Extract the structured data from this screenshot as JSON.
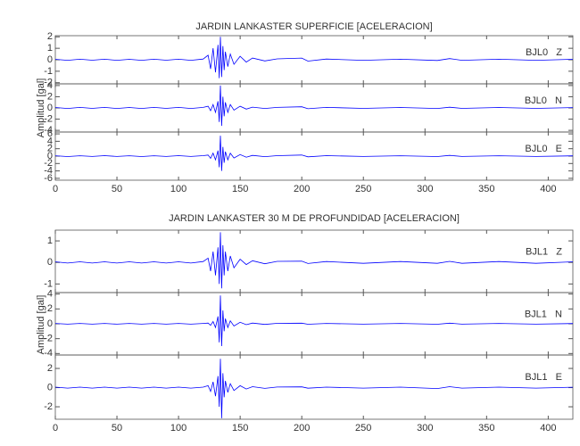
{
  "chart_data": [
    {
      "type": "line",
      "title": "JARDIN LANKASTER SUPERFICIE [ACELERACION]",
      "ylabel": "Amplitud [gal]",
      "color": "#0000ff",
      "xlim": [
        0,
        420
      ],
      "xticks": [
        0,
        50,
        100,
        150,
        200,
        250,
        300,
        350,
        400
      ],
      "x": [
        0,
        10,
        20,
        30,
        40,
        50,
        60,
        70,
        80,
        90,
        100,
        110,
        120,
        124,
        126,
        128,
        130,
        132,
        133,
        134,
        135,
        136,
        137,
        138,
        140,
        142,
        145,
        150,
        155,
        160,
        170,
        180,
        200,
        205,
        220,
        250,
        280,
        310,
        320,
        330,
        360,
        390,
        420
      ],
      "panels": [
        {
          "label": "BJL0   Z",
          "ylim": [
            -2.1,
            2.1
          ],
          "yticks": [
            -2,
            -1,
            0,
            1,
            2
          ],
          "values": [
            0.04,
            -0.05,
            0.05,
            -0.04,
            0.05,
            -0.05,
            0.04,
            -0.05,
            0.05,
            -0.04,
            0.05,
            -0.05,
            0.06,
            0.4,
            -0.8,
            1.0,
            -1.1,
            1.3,
            -1.6,
            2.0,
            -1.5,
            1.2,
            -0.9,
            0.7,
            -0.6,
            0.5,
            -0.4,
            0.3,
            -0.2,
            0.15,
            -0.1,
            0.08,
            0.15,
            -0.12,
            0.06,
            -0.05,
            0.05,
            -0.06,
            0.1,
            -0.05,
            0.05,
            -0.05,
            0.04
          ]
        },
        {
          "label": "BJL0   N",
          "ylim": [
            -4.3,
            4.3
          ],
          "yticks": [
            -4,
            -2,
            0,
            2,
            4
          ],
          "values": [
            0.08,
            -0.1,
            0.1,
            -0.08,
            0.1,
            -0.1,
            0.08,
            -0.1,
            0.1,
            -0.08,
            0.1,
            -0.1,
            0.1,
            0.3,
            -0.5,
            0.6,
            -0.8,
            1.2,
            -2.5,
            4.0,
            -3.2,
            2.0,
            -1.5,
            1.0,
            -0.8,
            0.6,
            -0.4,
            0.3,
            -0.2,
            0.15,
            -0.1,
            0.1,
            0.2,
            -0.15,
            0.1,
            -0.08,
            0.08,
            -0.1,
            0.12,
            -0.08,
            0.08,
            -0.08,
            0.06
          ]
        },
        {
          "label": "BJL0   E",
          "ylim": [
            -6.5,
            6.5
          ],
          "yticks": [
            -6,
            -4,
            -2,
            0,
            2,
            4,
            6
          ],
          "values": [
            0.1,
            -0.12,
            0.1,
            -0.1,
            0.12,
            -0.1,
            0.1,
            -0.12,
            0.1,
            -0.1,
            0.12,
            -0.1,
            0.12,
            0.3,
            -0.6,
            0.8,
            -1.0,
            1.5,
            -3.0,
            5.5,
            -4.0,
            2.5,
            -1.8,
            1.2,
            -1.0,
            0.8,
            -0.5,
            0.4,
            -0.3,
            0.2,
            -0.15,
            0.12,
            0.3,
            -0.2,
            0.12,
            -0.1,
            0.1,
            -0.12,
            0.2,
            -0.1,
            0.1,
            -0.1,
            0.08
          ]
        }
      ]
    },
    {
      "type": "line",
      "title": "JARDIN LANKASTER 30 M DE PROFUNDIDAD [ACELERACION]",
      "ylabel": "Amplitud [gal]",
      "color": "#0000ff",
      "xlim": [
        0,
        420
      ],
      "xticks": [
        0,
        50,
        100,
        150,
        200,
        250,
        300,
        350,
        400
      ],
      "x": [
        0,
        10,
        20,
        30,
        40,
        50,
        60,
        70,
        80,
        90,
        100,
        110,
        120,
        124,
        126,
        128,
        130,
        132,
        133,
        134,
        135,
        136,
        137,
        138,
        140,
        142,
        145,
        150,
        155,
        160,
        170,
        180,
        200,
        205,
        220,
        250,
        280,
        310,
        320,
        330,
        360,
        390,
        420
      ],
      "panels": [
        {
          "label": "BJL1   Z",
          "ylim": [
            -1.4,
            1.5
          ],
          "yticks": [
            -1,
            0,
            1
          ],
          "values": [
            0.03,
            -0.03,
            0.03,
            -0.03,
            0.03,
            -0.03,
            0.03,
            -0.03,
            0.03,
            -0.03,
            0.03,
            -0.03,
            0.04,
            0.2,
            -0.4,
            0.5,
            -0.6,
            0.7,
            -1.0,
            1.4,
            -1.2,
            0.8,
            -0.6,
            0.5,
            -0.4,
            0.3,
            -0.25,
            0.15,
            -0.1,
            0.08,
            -0.06,
            0.05,
            0.06,
            -0.05,
            0.04,
            -0.04,
            0.04,
            -0.04,
            0.05,
            -0.04,
            0.04,
            -0.04,
            0.03
          ]
        },
        {
          "label": "BJL1   N",
          "ylim": [
            -4.2,
            4.2
          ],
          "yticks": [
            -4,
            -2,
            0,
            2,
            4
          ],
          "values": [
            0.05,
            -0.05,
            0.05,
            -0.05,
            0.05,
            -0.05,
            0.05,
            -0.05,
            0.05,
            -0.05,
            0.05,
            -0.05,
            0.05,
            0.1,
            -0.2,
            0.3,
            -0.5,
            1.0,
            -2.5,
            3.8,
            -3.0,
            1.8,
            -1.0,
            0.7,
            -0.5,
            0.4,
            -0.3,
            0.2,
            -0.12,
            0.1,
            -0.08,
            0.06,
            0.08,
            -0.06,
            0.05,
            -0.05,
            0.05,
            -0.06,
            0.08,
            -0.05,
            0.05,
            -0.05,
            0.04
          ]
        },
        {
          "label": "BJL1   E",
          "ylim": [
            -3.3,
            3.4
          ],
          "yticks": [
            -2,
            0,
            2
          ],
          "values": [
            0.05,
            -0.05,
            0.05,
            -0.05,
            0.05,
            -0.05,
            0.05,
            -0.05,
            0.05,
            -0.05,
            0.05,
            -0.05,
            0.05,
            0.2,
            -0.4,
            0.6,
            -0.9,
            1.2,
            -2.0,
            3.0,
            -3.2,
            1.5,
            -1.0,
            0.7,
            -0.5,
            0.4,
            -0.3,
            0.2,
            -0.15,
            0.1,
            -0.08,
            0.06,
            0.08,
            -0.06,
            0.05,
            -0.05,
            0.05,
            -0.1,
            0.1,
            -0.05,
            0.05,
            -0.05,
            0.04
          ]
        }
      ]
    }
  ]
}
